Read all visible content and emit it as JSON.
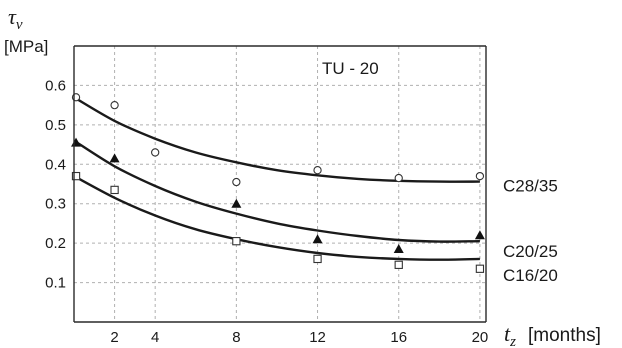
{
  "chart_data": {
    "type": "scatter",
    "title": "TU - 20",
    "ylabel_symbol": "τ",
    "ylabel_sub": "v",
    "ylabel_unit": "[MPa]",
    "xlabel_symbol": "t",
    "xlabel_sub": "z",
    "xlabel_unit": "[months]",
    "xlim": [
      0,
      20.3
    ],
    "ylim": [
      0,
      0.7
    ],
    "xticks": [
      2,
      4,
      8,
      12,
      16,
      20
    ],
    "xtick_labels": [
      "2",
      "4",
      "8",
      "12",
      "16",
      "20"
    ],
    "yticks": [
      0.1,
      0.2,
      0.3,
      0.4,
      0.5,
      0.6
    ],
    "ytick_labels": [
      "0.1",
      "0.2",
      "0.3",
      "0.4",
      "0.5",
      "0.6"
    ],
    "grid": true,
    "series": [
      {
        "name": "C28/35",
        "marker": "circle",
        "x": [
          0.1,
          2,
          4,
          8,
          12,
          16,
          20
        ],
        "y": [
          0.57,
          0.55,
          0.43,
          0.355,
          0.385,
          0.365,
          0.37
        ],
        "fit": {
          "x": [
            0,
            2,
            4,
            6,
            8,
            10,
            12,
            14,
            16,
            18,
            20
          ],
          "y": [
            0.57,
            0.51,
            0.465,
            0.43,
            0.405,
            0.385,
            0.372,
            0.363,
            0.358,
            0.356,
            0.356
          ]
        }
      },
      {
        "name": "C20/25",
        "marker": "triangle",
        "x": [
          0.1,
          2,
          8,
          12,
          16,
          20
        ],
        "y": [
          0.455,
          0.415,
          0.3,
          0.21,
          0.185,
          0.22
        ],
        "fit": {
          "x": [
            0,
            2,
            4,
            6,
            8,
            10,
            12,
            14,
            16,
            18,
            20
          ],
          "y": [
            0.46,
            0.395,
            0.345,
            0.305,
            0.275,
            0.25,
            0.232,
            0.218,
            0.208,
            0.204,
            0.205
          ]
        }
      },
      {
        "name": "C16/20",
        "marker": "square",
        "x": [
          0.1,
          2,
          8,
          12,
          16,
          20
        ],
        "y": [
          0.37,
          0.335,
          0.205,
          0.16,
          0.145,
          0.135
        ],
        "fit": {
          "x": [
            0,
            2,
            4,
            6,
            8,
            10,
            12,
            14,
            16,
            18,
            20
          ],
          "y": [
            0.37,
            0.315,
            0.27,
            0.235,
            0.21,
            0.19,
            0.175,
            0.165,
            0.16,
            0.158,
            0.16
          ]
        }
      }
    ]
  }
}
